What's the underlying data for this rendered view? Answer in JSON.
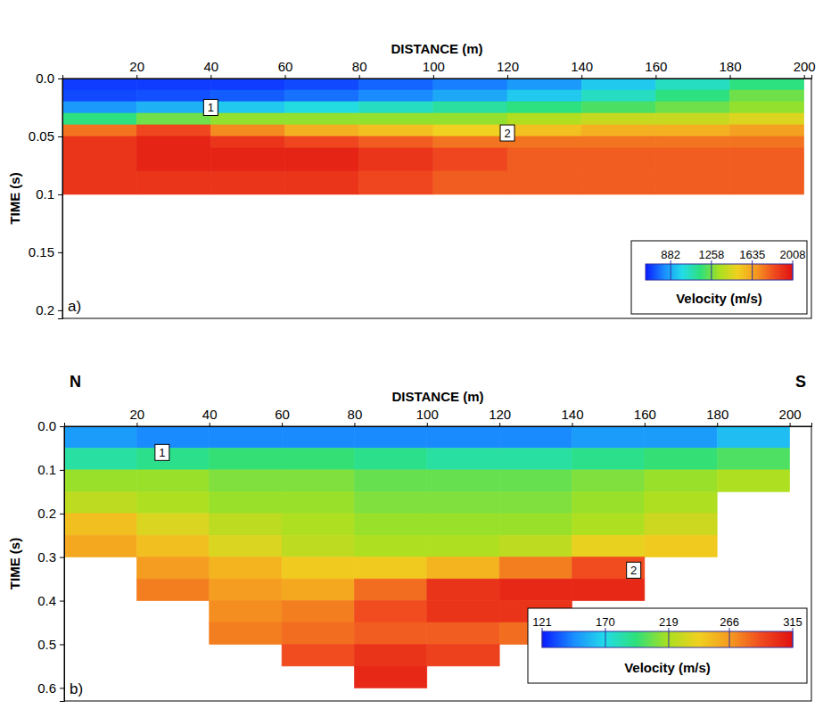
{
  "chart_data": [
    {
      "type": "heatmap",
      "panel": "a)",
      "x_label": "DISTANCE (m)",
      "y_label": "TIME (s)",
      "xlim": [
        0,
        202
      ],
      "xticks": [
        20,
        40,
        60,
        80,
        100,
        120,
        140,
        160,
        180,
        200
      ],
      "ylim": [
        0,
        0.207
      ],
      "yticks": [
        {
          "value": 0,
          "label": "0.0"
        },
        0.05,
        0.1,
        0.15,
        0.2
      ],
      "x": [
        10,
        30,
        50,
        70,
        90,
        110,
        130,
        150,
        170,
        190
      ],
      "y": [
        0.005,
        0.015,
        0.025,
        0.035,
        0.045,
        0.055,
        0.065,
        0.075,
        0.085,
        0.095
      ],
      "values": [
        [
          700,
          700,
          700,
          720,
          760,
          800,
          850,
          950,
          1050,
          1150
        ],
        [
          720,
          730,
          750,
          780,
          820,
          880,
          950,
          1050,
          1150,
          1250
        ],
        [
          850,
          900,
          950,
          1000,
          1050,
          1100,
          1150,
          1200,
          1250,
          1300
        ],
        [
          1150,
          1250,
          1300,
          1300,
          1300,
          1300,
          1350,
          1400,
          1400,
          1450
        ],
        [
          1750,
          1850,
          1700,
          1600,
          1550,
          1500,
          1550,
          1600,
          1600,
          1650
        ],
        [
          1900,
          1950,
          1900,
          1850,
          1800,
          1750,
          1750,
          1750,
          1750,
          1750
        ],
        [
          1900,
          1950,
          1950,
          1950,
          1900,
          1850,
          1800,
          1800,
          1800,
          1800
        ],
        [
          1900,
          1950,
          1950,
          1950,
          1900,
          1850,
          1800,
          1800,
          1800,
          1800
        ],
        [
          1900,
          1900,
          1900,
          1900,
          1850,
          1800,
          1800,
          1800,
          1800,
          1800
        ],
        [
          1900,
          1900,
          1900,
          1900,
          1850,
          1800,
          1800,
          1800,
          1800,
          1800
        ]
      ],
      "colorbar": {
        "title": "Velocity (m/s)",
        "range": [
          650,
          2008
        ],
        "ticks": [
          882,
          1258,
          1635,
          2008
        ]
      },
      "annotations": [
        {
          "text": "1",
          "x": 40,
          "y": 0.025
        },
        {
          "text": "2",
          "x": 120,
          "y": 0.047
        }
      ]
    },
    {
      "type": "heatmap",
      "panel": "b)",
      "x_label": "DISTANCE (m)",
      "y_label": "TIME (s)",
      "direction_labels": {
        "left": "N",
        "right": "S"
      },
      "xlim": [
        0,
        206
      ],
      "xticks": [
        20,
        40,
        60,
        80,
        100,
        120,
        140,
        160,
        180,
        200
      ],
      "ylim": [
        0,
        0.63
      ],
      "yticks": [
        {
          "value": 0,
          "label": "0.0"
        },
        0.1,
        0.2,
        0.3,
        0.4,
        0.5,
        0.6
      ],
      "x": [
        10,
        30,
        50,
        70,
        90,
        110,
        130,
        150,
        170,
        190
      ],
      "y": [
        0.025,
        0.075,
        0.125,
        0.175,
        0.225,
        0.275,
        0.325,
        0.375,
        0.425,
        0.475,
        0.525,
        0.575
      ],
      "values": [
        [
          150,
          145,
          145,
          145,
          145,
          145,
          145,
          150,
          150,
          160
        ],
        [
          185,
          190,
          195,
          195,
          190,
          185,
          185,
          190,
          195,
          200
        ],
        [
          215,
          215,
          210,
          210,
          205,
          205,
          205,
          210,
          215,
          220
        ],
        [
          225,
          220,
          215,
          215,
          210,
          210,
          210,
          215,
          220,
          null
        ],
        [
          250,
          235,
          225,
          220,
          215,
          215,
          215,
          220,
          230,
          null
        ],
        [
          260,
          250,
          235,
          225,
          220,
          220,
          225,
          240,
          245,
          null
        ],
        [
          null,
          265,
          255,
          245,
          245,
          255,
          275,
          290,
          null,
          null
        ],
        [
          null,
          275,
          265,
          260,
          280,
          300,
          305,
          305,
          null,
          null
        ],
        [
          null,
          null,
          270,
          275,
          290,
          300,
          300,
          null,
          null,
          null
        ],
        [
          null,
          null,
          275,
          280,
          285,
          285,
          280,
          null,
          null,
          null
        ],
        [
          null,
          null,
          null,
          290,
          300,
          295,
          null,
          null,
          null,
          null
        ],
        [
          null,
          null,
          null,
          null,
          305,
          null,
          null,
          null,
          null,
          null
        ]
      ],
      "colorbar": {
        "title": "Velocity (m/s)",
        "range": [
          121,
          315
        ],
        "ticks": [
          121,
          170,
          219,
          266,
          315
        ]
      },
      "annotations": [
        {
          "text": "1",
          "x": 27,
          "y": 0.06
        },
        {
          "text": "2",
          "x": 157,
          "y": 0.33
        }
      ]
    }
  ]
}
